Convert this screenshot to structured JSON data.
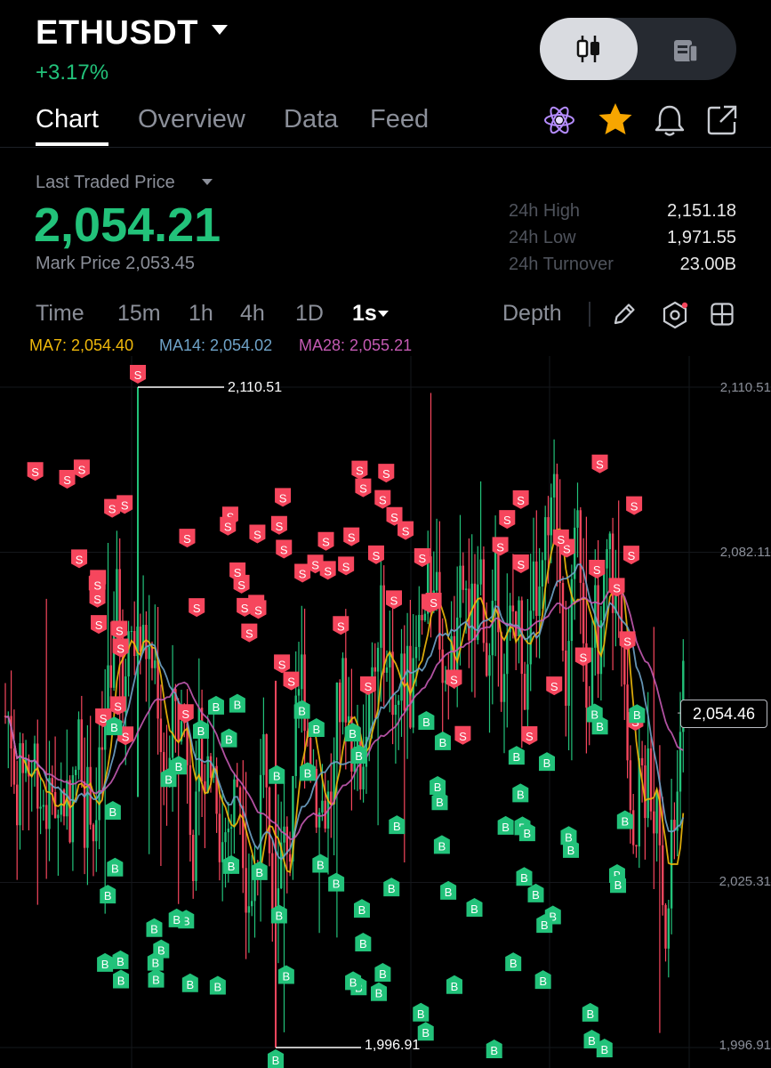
{
  "header": {
    "symbol": "ETHUSDT",
    "change": "+3.17%",
    "view_toggle": {
      "chart_icon": "candlestick-icon",
      "info_icon": "document-icon",
      "active": "chart"
    }
  },
  "tabs": [
    {
      "label": "Chart",
      "active": true
    },
    {
      "label": "Overview",
      "active": false
    },
    {
      "label": "Data",
      "active": false
    },
    {
      "label": "Feed",
      "active": false
    }
  ],
  "tab_icons": [
    "atom-icon",
    "star-icon",
    "bell-icon",
    "share-icon"
  ],
  "price_panel": {
    "label": "Last Traded Price",
    "price": "2,054.21",
    "mark_price_label": "Mark Price",
    "mark_price": "2,053.45",
    "stats": [
      {
        "label": "24h High",
        "value": "2,151.18"
      },
      {
        "label": "24h Low",
        "value": "1,971.55"
      },
      {
        "label": "24h Turnover",
        "value": "23.00B"
      }
    ]
  },
  "timeframes": [
    {
      "label": "Time",
      "active": false
    },
    {
      "label": "15m",
      "active": false
    },
    {
      "label": "1h",
      "active": false
    },
    {
      "label": "4h",
      "active": false
    },
    {
      "label": "1D",
      "active": false
    },
    {
      "label": "1s",
      "active": true
    }
  ],
  "toolbar": {
    "depth_label": "Depth",
    "icons": [
      "pencil-icon",
      "hexagon-settings-icon",
      "layout-grid-icon"
    ]
  },
  "moving_averages": [
    {
      "label": "MA7: 2,054.40",
      "color": "#f0b90b"
    },
    {
      "label": "MA14: 2,054.02",
      "color": "#6fa3c8"
    },
    {
      "label": "MA28: 2,055.21",
      "color": "#c45ab3"
    }
  ],
  "colors": {
    "up": "#22c27a",
    "down": "#f6465d",
    "text_muted": "#8b8f99"
  },
  "chart_data": {
    "type": "candlestick",
    "interval": "1s",
    "y_ticks": [
      "2,110.51",
      "2,082.11",
      "2,025.31",
      "1,996.91"
    ],
    "y_tick_values": [
      2110.51,
      2082.11,
      2025.31,
      1996.91
    ],
    "visible_high": "2,110.51",
    "visible_low": "1,996.91",
    "last_price_label": "2,054.46",
    "last_price": 2054.46,
    "buy_marker": "B",
    "sell_marker": "S"
  }
}
